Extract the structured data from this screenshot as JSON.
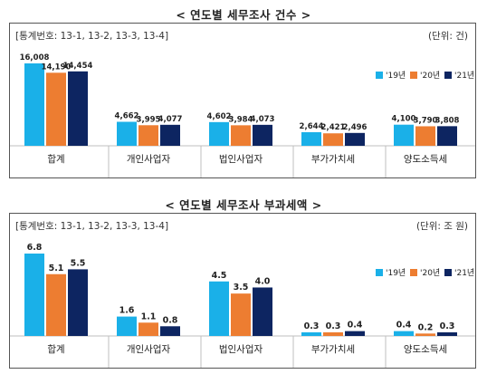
{
  "colors": {
    "y19": "#1AB0E8",
    "y20": "#ED7D31",
    "y21": "#0D2561"
  },
  "chart_data": [
    {
      "type": "bar",
      "title": "< 연도별 세무조사 건수 >",
      "source_note": "[통계번호: 13-1, 13-2, 13-3, 13-4]",
      "unit_note": "(단위: 건)",
      "categories": [
        "합계",
        "개인사업자",
        "법인사업자",
        "부가가치세",
        "양도소득세"
      ],
      "series": [
        {
          "name": "'19년",
          "values": [
            16008,
            4662,
            4602,
            2644,
            4100
          ],
          "labels": [
            "16,008",
            "4,662",
            "4,602",
            "2,644",
            "4,100"
          ]
        },
        {
          "name": "'20년",
          "values": [
            14190,
            3995,
            3984,
            2421,
            3790
          ],
          "labels": [
            "14,190",
            "3,995",
            "3,984",
            "2,421",
            "3,790"
          ]
        },
        {
          "name": "'21년",
          "values": [
            14454,
            4077,
            4073,
            2496,
            3808
          ],
          "labels": [
            "14,454",
            "4,077",
            "4,073",
            "2,496",
            "3,808"
          ]
        }
      ],
      "ylim": [
        0,
        16008
      ],
      "grid": false,
      "legend_position": "right"
    },
    {
      "type": "bar",
      "title": "< 연도별 세무조사 부과세액 >",
      "source_note": "[통계번호: 13-1, 13-2, 13-3, 13-4]",
      "unit_note": "(단위: 조 원)",
      "categories": [
        "합계",
        "개인사업자",
        "법인사업자",
        "부가가치세",
        "양도소득세"
      ],
      "series": [
        {
          "name": "'19년",
          "values": [
            6.8,
            1.6,
            4.5,
            0.3,
            0.4
          ],
          "labels": [
            "6.8",
            "1.6",
            "4.5",
            "0.3",
            "0.4"
          ]
        },
        {
          "name": "'20년",
          "values": [
            5.1,
            1.1,
            3.5,
            0.3,
            0.2
          ],
          "labels": [
            "5.1",
            "1.1",
            "3.5",
            "0.3",
            "0.2"
          ]
        },
        {
          "name": "'21년",
          "values": [
            5.5,
            0.8,
            4.0,
            0.4,
            0.3
          ],
          "labels": [
            "5.5",
            "0.8",
            "4.0",
            "0.4",
            "0.3"
          ]
        }
      ],
      "ylim": [
        0,
        6.8
      ],
      "grid": false,
      "legend_position": "right"
    }
  ]
}
